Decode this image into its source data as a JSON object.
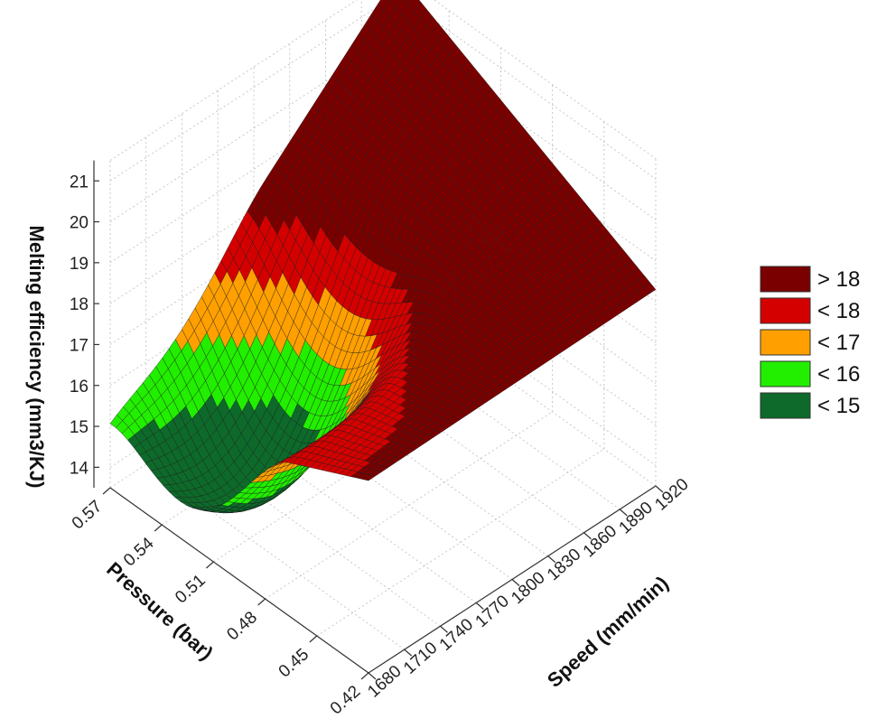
{
  "chart_data": {
    "type": "surface",
    "zlabel": "Melting efficiency  (mm3/KJ)",
    "xlabel": "Pressure (bar)",
    "ylabel": "Speed (mm/min)",
    "x_ticks": [
      "0.57",
      "0.54",
      "0.51",
      "0.48",
      "0.45",
      "0.42"
    ],
    "y_ticks": [
      "1680",
      "1710",
      "1740",
      "1770",
      "1800",
      "1830",
      "1860",
      "1890",
      "1920"
    ],
    "z_ticks": [
      "14",
      "15",
      "16",
      "17",
      "18",
      "19",
      "20",
      "21"
    ],
    "xlim": [
      0.42,
      0.57
    ],
    "ylim": [
      1680,
      1920
    ],
    "zlim": [
      13.5,
      21.5
    ],
    "grid": true,
    "legend_position": "right",
    "legend": [
      {
        "label": "> 18",
        "color": "#7a0000"
      },
      {
        "label": "< 18",
        "color": "#d40000"
      },
      {
        "label": "< 17",
        "color": "#ffa000"
      },
      {
        "label": "< 16",
        "color": "#22ee00"
      },
      {
        "label": "< 15",
        "color": "#0d6a2a"
      }
    ],
    "corners": [
      {
        "pressure": 0.57,
        "speed": 1680,
        "efficiency": 15.1
      },
      {
        "pressure": 0.42,
        "speed": 1680,
        "efficiency": 18.2
      },
      {
        "pressure": 0.57,
        "speed": 1920,
        "efficiency": 21.5
      },
      {
        "pressure": 0.42,
        "speed": 1920,
        "efficiency": 18.3
      }
    ],
    "minimum": {
      "pressure": 0.52,
      "speed": 1740,
      "efficiency": 14.0
    }
  }
}
